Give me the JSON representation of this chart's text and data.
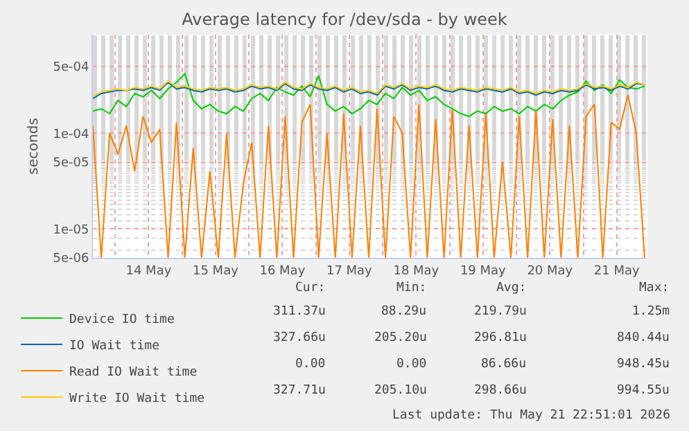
{
  "chart_data": {
    "type": "line",
    "title": "Average latency for /dev/sda - by week",
    "ylabel": "seconds",
    "x": [
      "2026-05-13T16:00",
      "2026-05-13T19:00",
      "2026-05-13T22:00",
      "2026-05-14T01:00",
      "2026-05-14T04:00",
      "2026-05-14T07:00",
      "2026-05-14T10:00",
      "2026-05-14T13:00",
      "2026-05-14T16:00",
      "2026-05-14T19:00",
      "2026-05-14T22:00",
      "2026-05-15T01:00",
      "2026-05-15T04:00",
      "2026-05-15T07:00",
      "2026-05-15T10:00",
      "2026-05-15T13:00",
      "2026-05-15T16:00",
      "2026-05-15T19:00",
      "2026-05-15T22:00",
      "2026-05-16T01:00",
      "2026-05-16T04:00",
      "2026-05-16T07:00",
      "2026-05-16T10:00",
      "2026-05-16T13:00",
      "2026-05-16T16:00",
      "2026-05-16T19:00",
      "2026-05-16T22:00",
      "2026-05-17T01:00",
      "2026-05-17T04:00",
      "2026-05-17T07:00",
      "2026-05-17T10:00",
      "2026-05-17T13:00",
      "2026-05-17T16:00",
      "2026-05-17T19:00",
      "2026-05-17T22:00",
      "2026-05-18T01:00",
      "2026-05-18T04:00",
      "2026-05-18T07:00",
      "2026-05-18T10:00",
      "2026-05-18T13:00",
      "2026-05-18T16:00",
      "2026-05-18T19:00",
      "2026-05-18T22:00",
      "2026-05-19T01:00",
      "2026-05-19T04:00",
      "2026-05-19T07:00",
      "2026-05-19T10:00",
      "2026-05-19T13:00",
      "2026-05-19T16:00",
      "2026-05-19T19:00",
      "2026-05-19T22:00",
      "2026-05-20T01:00",
      "2026-05-20T04:00",
      "2026-05-20T07:00",
      "2026-05-20T10:00",
      "2026-05-20T13:00",
      "2026-05-20T16:00",
      "2026-05-20T19:00",
      "2026-05-20T22:00",
      "2026-05-21T01:00",
      "2026-05-21T04:00",
      "2026-05-21T07:00",
      "2026-05-21T10:00",
      "2026-05-21T13:00",
      "2026-05-21T16:00",
      "2026-05-21T19:00",
      "2026-05-21T22:00"
    ],
    "series": [
      {
        "name": "Device IO time",
        "color": "#00cc00",
        "values": [
          0.00017,
          0.00018,
          0.00016,
          0.00022,
          0.00019,
          0.00026,
          0.00024,
          0.00028,
          0.00023,
          0.00029,
          0.00034,
          0.00042,
          0.00022,
          0.00018,
          0.0002,
          0.00017,
          0.00016,
          0.00019,
          0.00017,
          0.00023,
          0.00026,
          0.00022,
          0.0003,
          0.00027,
          0.00025,
          0.00031,
          0.00024,
          0.0004,
          0.0002,
          0.00017,
          0.00019,
          0.00016,
          0.00018,
          0.00022,
          0.0002,
          0.00026,
          0.00023,
          0.0003,
          0.00025,
          0.00028,
          0.00022,
          0.00024,
          0.0002,
          0.00018,
          0.00016,
          0.00015,
          0.00017,
          0.00016,
          0.00019,
          0.00017,
          0.00018,
          0.00016,
          0.00019,
          0.00017,
          0.0002,
          0.00018,
          0.00022,
          0.00025,
          0.00027,
          0.00035,
          0.00028,
          0.00032,
          0.00026,
          0.00036,
          0.0003,
          0.00029,
          0.00031
        ]
      },
      {
        "name": "IO Wait time",
        "color": "#0066b3",
        "values": [
          0.00023,
          0.00026,
          0.00027,
          0.00028,
          0.00028,
          0.00029,
          0.00028,
          0.0003,
          0.00028,
          0.00034,
          0.00029,
          0.0003,
          0.00028,
          0.00027,
          0.00029,
          0.00028,
          0.00029,
          0.00027,
          0.00028,
          0.00031,
          0.00029,
          0.0003,
          0.00028,
          0.00033,
          0.00029,
          0.00028,
          0.00032,
          0.00029,
          0.00028,
          0.0003,
          0.00027,
          0.00029,
          0.00026,
          0.00027,
          0.00025,
          0.00031,
          0.00029,
          0.00032,
          0.00028,
          0.0003,
          0.00029,
          0.00031,
          0.00028,
          0.00027,
          0.00029,
          0.00028,
          0.00027,
          0.00029,
          0.00028,
          0.00027,
          0.00029,
          0.00026,
          0.00027,
          0.00025,
          0.00027,
          0.00026,
          0.00028,
          0.00027,
          0.00028,
          0.00032,
          0.00029,
          0.0003,
          0.00028,
          0.00031,
          0.00029,
          0.00033,
          0.00032
        ]
      },
      {
        "name": "Read IO Wait time",
        "color": "#ff8000",
        "values": [
          0.00012,
          5e-06,
          0.0001,
          6e-05,
          0.00012,
          4e-05,
          0.00015,
          8e-05,
          0.00011,
          5e-06,
          0.00013,
          5e-06,
          7e-05,
          5e-06,
          4e-05,
          5e-06,
          0.0001,
          5e-06,
          3e-05,
          8e-05,
          5e-06,
          0.00012,
          5e-06,
          0.00015,
          5e-06,
          0.00013,
          0.0002,
          5e-06,
          0.0001,
          5e-06,
          0.00016,
          5e-06,
          0.00012,
          5e-06,
          0.00018,
          5e-06,
          0.00015,
          0.0001,
          5e-06,
          0.0002,
          5e-06,
          0.00014,
          5e-06,
          0.00018,
          5e-06,
          0.00012,
          5e-06,
          0.00016,
          5e-06,
          5e-05,
          5e-06,
          0.00015,
          5e-06,
          0.00017,
          5e-06,
          0.00014,
          5e-06,
          0.00012,
          5e-06,
          0.00015,
          0.0002,
          5e-06,
          0.00013,
          0.00011,
          0.00025,
          0.0001,
          5e-06
        ]
      },
      {
        "name": "Write IO Wait time",
        "color": "#ffcc00",
        "values": [
          0.00024,
          0.00027,
          0.00028,
          0.00029,
          0.00028,
          0.0003,
          0.00029,
          0.00031,
          0.00029,
          0.00035,
          0.0003,
          0.00031,
          0.00029,
          0.00028,
          0.0003,
          0.00029,
          0.0003,
          0.00028,
          0.00029,
          0.00032,
          0.0003,
          0.00031,
          0.00029,
          0.00034,
          0.0003,
          0.00029,
          0.00033,
          0.0003,
          0.00029,
          0.00031,
          0.00028,
          0.0003,
          0.00027,
          0.00028,
          0.00026,
          0.00032,
          0.0003,
          0.00033,
          0.00029,
          0.00031,
          0.0003,
          0.00032,
          0.00029,
          0.00028,
          0.0003,
          0.00029,
          0.00028,
          0.0003,
          0.00029,
          0.00028,
          0.0003,
          0.00027,
          0.00028,
          0.00026,
          0.00028,
          0.00027,
          0.00029,
          0.00028,
          0.00029,
          0.00033,
          0.0003,
          0.00031,
          0.00029,
          0.00032,
          0.0003,
          0.00034,
          0.00032
        ]
      }
    ],
    "log": "y",
    "ylim": [
      5e-06,
      0.00107
    ],
    "yticks": [
      {
        "value": 5e-06,
        "label": "5e-06"
      },
      {
        "value": 1e-05,
        "label": "1e-05"
      },
      {
        "value": 5e-05,
        "label": "5e-05"
      },
      {
        "value": 0.0001,
        "label": "1e-04"
      },
      {
        "value": 0.0005,
        "label": "5e-04"
      }
    ],
    "xlim": [
      "2026-05-13T16:00",
      "2026-05-21T23:00"
    ],
    "xticks": [
      {
        "value": "2026-05-14T00:00",
        "label": null
      },
      {
        "value": "2026-05-14T12:00",
        "label": "14 May"
      },
      {
        "value": "2026-05-15T00:00",
        "label": null
      },
      {
        "value": "2026-05-15T12:00",
        "label": "15 May"
      },
      {
        "value": "2026-05-16T00:00",
        "label": null
      },
      {
        "value": "2026-05-16T12:00",
        "label": "16 May"
      },
      {
        "value": "2026-05-17T00:00",
        "label": null
      },
      {
        "value": "2026-05-17T12:00",
        "label": "17 May"
      },
      {
        "value": "2026-05-18T00:00",
        "label": null
      },
      {
        "value": "2026-05-18T12:00",
        "label": "18 May"
      },
      {
        "value": "2026-05-19T00:00",
        "label": null
      },
      {
        "value": "2026-05-19T12:00",
        "label": "19 May"
      },
      {
        "value": "2026-05-20T00:00",
        "label": null
      },
      {
        "value": "2026-05-20T12:00",
        "label": "20 May"
      },
      {
        "value": "2026-05-21T00:00",
        "label": null
      },
      {
        "value": "2026-05-21T12:00",
        "label": "21 May"
      }
    ],
    "grid": true,
    "legend": "bottom",
    "marker": "none",
    "line_style": "solid",
    "annotations": [
      "Cur:",
      "Min:",
      "Avg:",
      "Max:",
      "311.37u",
      "88.29u",
      "219.79u",
      "1.25m",
      "327.66u",
      "205.20u",
      "296.81u",
      "840.44u",
      "0.00",
      "0.00",
      "86.66u",
      "948.45u",
      "327.71u",
      "205.10u",
      "298.66u",
      "994.55u",
      "Last update: Thu May 21 22:51:01 2026"
    ]
  }
}
